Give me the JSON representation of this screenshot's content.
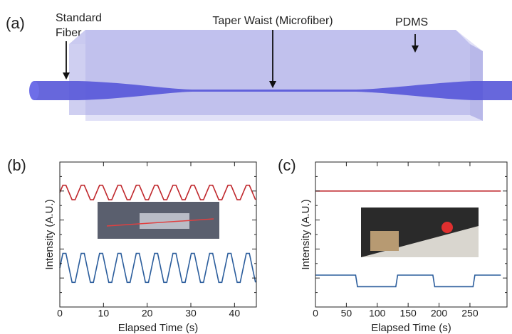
{
  "diagram": {
    "label": "(a)",
    "standard_fiber": [
      "Standard",
      "Fiber"
    ],
    "taper_waist": "Taper Waist (Microfiber)",
    "pdms": "PDMS"
  },
  "chart_data": [
    {
      "type": "line",
      "label": "(b)",
      "xlabel": "Elapsed Time (s)",
      "ylabel": "Intensity (A.U.)",
      "xlim": [
        0,
        45
      ],
      "xticks": [
        0,
        10,
        20,
        30,
        40
      ],
      "ylim": [
        0,
        10
      ],
      "x": [
        0,
        0.7,
        1.4,
        2.1,
        2.8,
        3.5,
        4.2,
        4.9,
        5.6,
        6.3,
        7,
        7.7,
        8.4,
        9.1,
        9.8,
        10.5,
        11.2,
        11.9,
        12.6,
        13.3,
        14,
        14.7,
        15.4,
        16.1,
        16.8,
        17.5,
        18.2,
        18.9,
        19.6,
        20.3,
        21,
        21.7,
        22.4,
        23.1,
        23.8,
        24.5,
        25.2,
        25.9,
        26.6,
        27.3,
        28,
        28.7,
        29.4,
        30.1,
        30.8,
        31.5,
        32.2,
        32.9,
        33.6,
        34.3,
        35,
        35.7,
        36.4,
        37.1,
        37.8,
        38.5,
        39.2,
        39.9,
        40.6,
        41.3,
        42,
        42.7,
        43.4,
        44.1,
        44.8
      ],
      "series": [
        {
          "color": "#c0282d",
          "values": [
            7.9,
            8.4,
            8.4,
            7.9,
            7.4,
            7.4,
            7.9,
            8.4,
            8.4,
            7.9,
            7.4,
            7.4,
            7.9,
            8.4,
            8.4,
            7.9,
            7.4,
            7.4,
            7.9,
            8.4,
            8.4,
            7.9,
            7.4,
            7.4,
            7.9,
            8.4,
            8.4,
            7.9,
            7.4,
            7.4,
            7.9,
            8.4,
            8.4,
            7.9,
            7.4,
            7.4,
            7.9,
            8.4,
            8.4,
            7.9,
            7.4,
            7.4,
            7.9,
            8.4,
            8.4,
            7.9,
            7.4,
            7.4,
            7.9,
            8.4,
            8.4,
            7.9,
            7.4,
            7.4,
            7.9,
            8.4,
            8.4,
            7.9,
            7.4,
            7.4,
            7.9,
            8.4,
            8.4,
            7.9,
            7.4
          ]
        },
        {
          "color": "#2b5d9c",
          "values": [
            2.7,
            3.7,
            3.7,
            2.7,
            1.7,
            1.7,
            2.7,
            3.7,
            3.7,
            2.7,
            1.7,
            1.7,
            2.7,
            3.7,
            3.7,
            2.7,
            1.7,
            1.7,
            2.7,
            3.7,
            3.7,
            2.7,
            1.7,
            1.7,
            2.7,
            3.7,
            3.7,
            2.7,
            1.7,
            1.7,
            2.7,
            3.7,
            3.7,
            2.7,
            1.7,
            1.7,
            2.7,
            3.7,
            3.7,
            2.7,
            1.7,
            1.7,
            2.7,
            3.7,
            3.7,
            2.7,
            1.7,
            1.7,
            2.7,
            3.7,
            3.7,
            2.7,
            1.7,
            1.7,
            2.7,
            3.7,
            3.7,
            2.7,
            1.7,
            1.7,
            2.7,
            3.7,
            3.7,
            2.7,
            1.7
          ]
        }
      ]
    },
    {
      "type": "line",
      "label": "(c)",
      "xlabel": "Elapsed Time (s)",
      "ylabel": "Intensity (A.U.)",
      "xlim": [
        0,
        310
      ],
      "xticks": [
        0,
        50,
        100,
        150,
        200,
        250
      ],
      "ylim": [
        0,
        10
      ],
      "series": [
        {
          "color": "#c0282d",
          "x": [
            0,
            300
          ],
          "values": [
            8,
            8
          ]
        },
        {
          "color": "#2b5d9c",
          "x": [
            0,
            65,
            68,
            130,
            133,
            190,
            193,
            255,
            258,
            300
          ],
          "values": [
            2.2,
            2.2,
            1.4,
            1.4,
            2.2,
            2.2,
            1.4,
            1.4,
            2.2,
            2.2
          ]
        }
      ]
    }
  ]
}
